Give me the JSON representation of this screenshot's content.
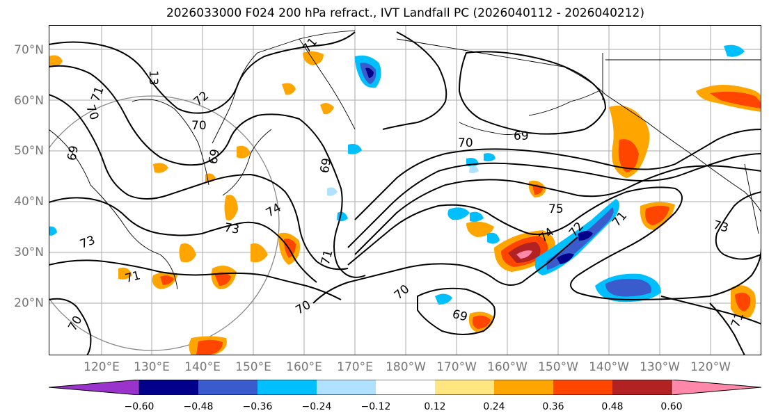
{
  "title": "2026033000 F024 200 hPa refract., IVT Landfall PC (2026040112 - 2026040212)",
  "latitude_labels": [
    "70°N",
    "60°N",
    "50°N",
    "40°N",
    "30°N",
    "20°N"
  ],
  "longitude_labels": [
    "120°E",
    "130°E",
    "140°E",
    "150°E",
    "160°E",
    "170°E",
    "180°W",
    "170°W",
    "160°W",
    "150°W",
    "140°W",
    "130°W",
    "120°W"
  ],
  "contour_labels": [
    "71",
    "13",
    "71",
    "72",
    "70",
    "69",
    "70",
    "69",
    "69",
    "70",
    "69",
    "74",
    "73",
    "73",
    "71",
    "70",
    "70",
    "71",
    "69",
    "75",
    "74",
    "71",
    "73",
    "71",
    "70",
    "72"
  ],
  "colorbar": {
    "ticks": [
      "−0.60",
      "−0.48",
      "−0.36",
      "−0.24",
      "−0.12",
      "0.12",
      "0.24",
      "0.36",
      "0.48",
      "0.60"
    ],
    "colors": [
      "#9933cc",
      "#00008b",
      "#3a5bcc",
      "#00bfff",
      "#b0e2ff",
      "#ffffff",
      "#ffe680",
      "#ffa500",
      "#ff4500",
      "#b22222",
      "#ff88aa",
      "#ff88aa"
    ]
  },
  "colors": {
    "contour": "#000000",
    "grid": "#aaaaaa",
    "coast": "#000000",
    "circle": "#888888"
  }
}
